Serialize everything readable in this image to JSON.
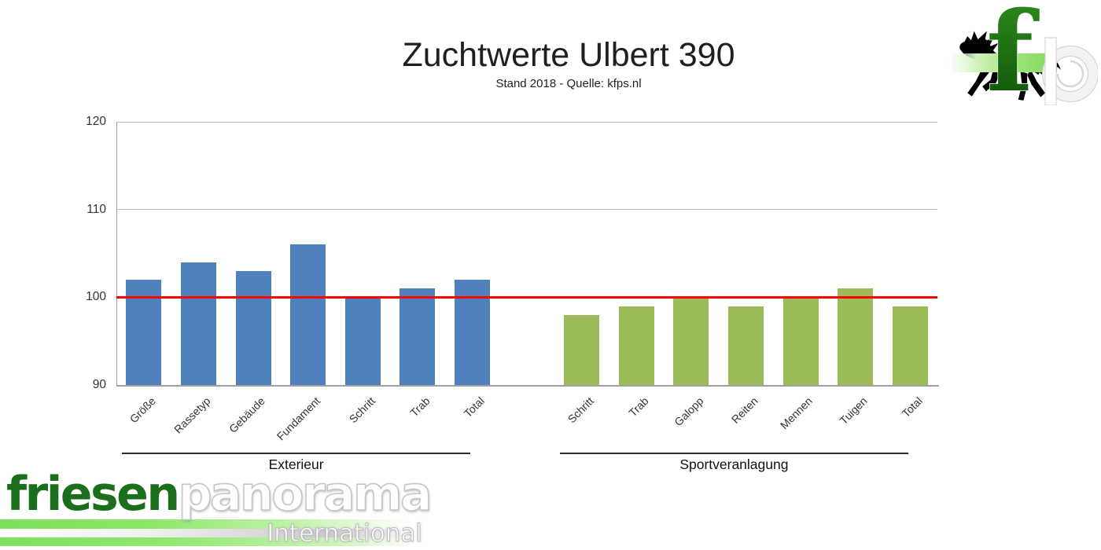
{
  "header": {
    "title": "Zuchtwerte Ulbert 390",
    "subtitle": "Stand 2018 - Quelle: kfps.nl"
  },
  "fp_logo": {
    "letter_f": "f",
    "letter_p": "p",
    "horse_icon": "friesian-horse-silhouette",
    "f_color": "#15650c",
    "band_color": "#7fd95e"
  },
  "footer_logo": {
    "name_part1": "friesen",
    "name_part2": "panorama",
    "tagline": "International",
    "green": "#1b6e1b"
  },
  "chart_data": {
    "type": "bar",
    "title": "Zuchtwerte Ulbert 390",
    "subtitle": "Stand 2018 - Quelle: kfps.nl",
    "xlabel": "",
    "ylabel": "",
    "ylim": [
      90,
      120
    ],
    "yticks": [
      90,
      100,
      110,
      120
    ],
    "grid": true,
    "legend_position": "none",
    "reference_line": {
      "value": 100,
      "color": "#ff0000"
    },
    "groups": [
      {
        "label": "Exterieur",
        "color": "#4f81bd",
        "categories": [
          "Größe",
          "Rassetyp",
          "Gebäude",
          "Fundament",
          "Schritt",
          "Trab",
          "Total"
        ],
        "values": [
          102,
          104,
          103,
          106,
          100,
          101,
          102
        ]
      },
      {
        "label": "Sportveranlagung",
        "color": "#9bbb59",
        "categories": [
          "Schritt",
          "Trab",
          "Galopp",
          "Reiten",
          "Mennen",
          "Tuigen",
          "Total"
        ],
        "values": [
          98,
          99,
          100,
          99,
          100,
          101,
          99
        ]
      }
    ]
  }
}
